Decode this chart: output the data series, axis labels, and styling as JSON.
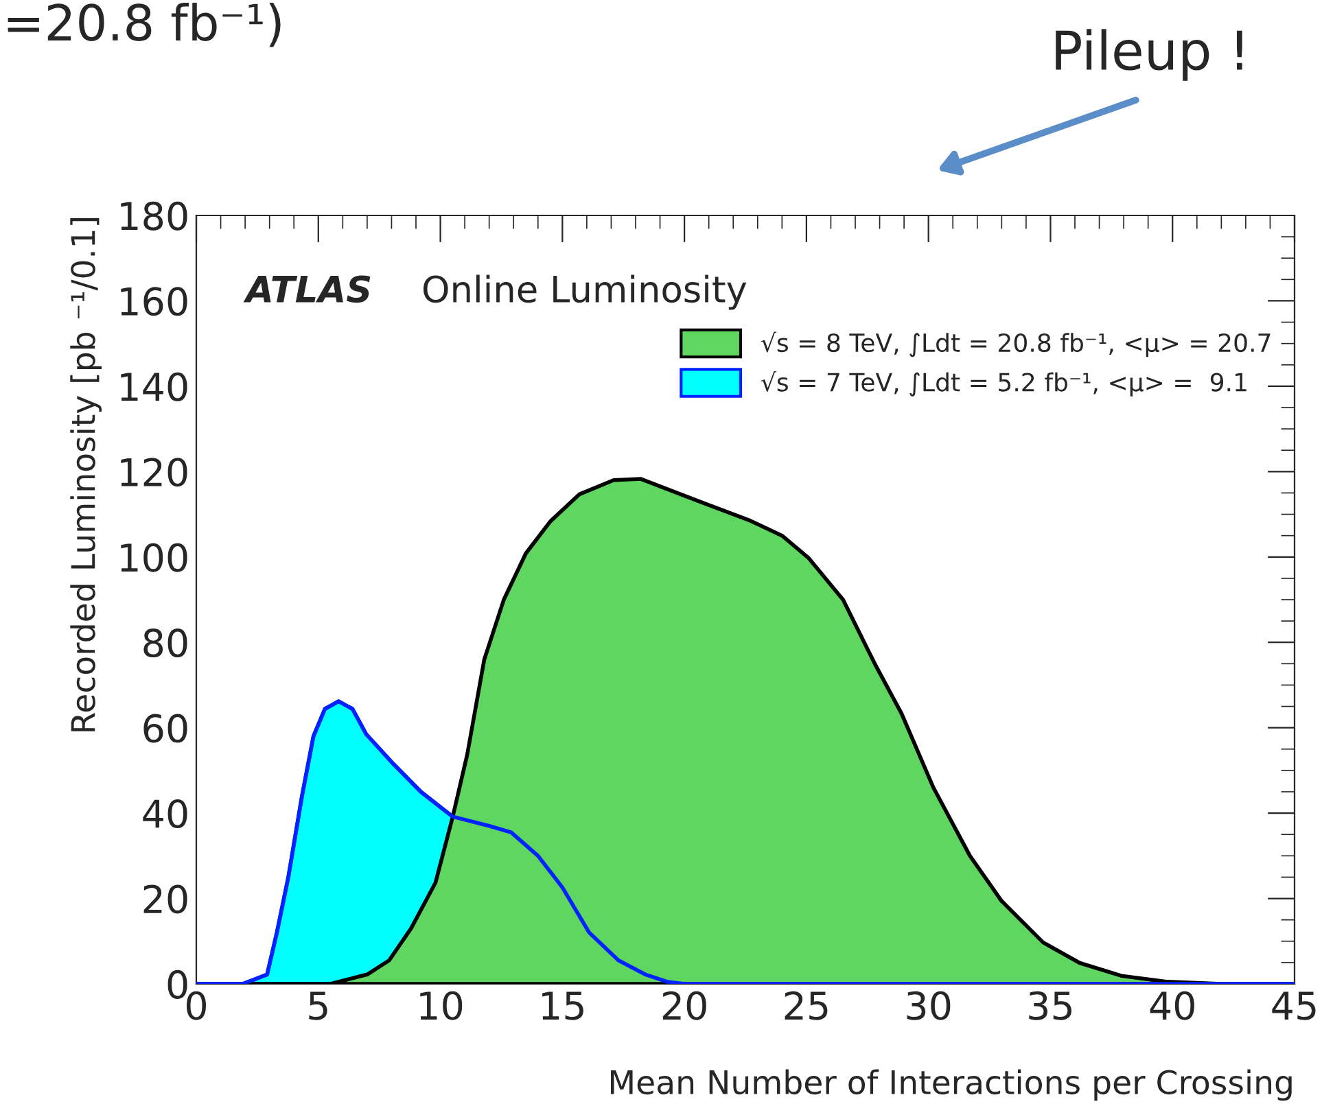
{
  "chart_data": {
    "type": "area",
    "xlabel": "Mean Number of Interactions per Crossing",
    "ylabel": "Recorded Luminosity [pb ⁻¹/0.1]",
    "annotations": [
      "ATLAS",
      "Online Luminosity",
      "Pileup !",
      "=20.8 fb⁻¹)"
    ],
    "xlim": [
      0,
      45
    ],
    "xticks": [
      0,
      5,
      10,
      15,
      20,
      25,
      30,
      35,
      40,
      45
    ],
    "ylim": [
      0,
      180
    ],
    "yticks": [
      0,
      20,
      40,
      60,
      80,
      100,
      120,
      140,
      160,
      180
    ],
    "legend": "top right",
    "grid": false,
    "series": [
      {
        "name": "√s = 8 TeV, ∫Ldt = 20.8 fb⁻¹, <μ> = 20.7",
        "color": "#5fd65f",
        "x": [
          0,
          5.5,
          7.0,
          7.9,
          8.8,
          9.8,
          10.5,
          11.1,
          11.8,
          12.6,
          13.5,
          14.5,
          15.7,
          17.1,
          18.2,
          20.8,
          22.7,
          24.0,
          25.1,
          26.5,
          27.8,
          28.9,
          30.2,
          31.7,
          33.0,
          34.7,
          36.2,
          37.9,
          39.8,
          42,
          45
        ],
        "values": [
          0,
          0,
          2.2,
          5.5,
          13,
          23.7,
          39,
          53.7,
          76,
          90,
          100.8,
          108.3,
          114.7,
          118,
          118.3,
          112.6,
          108.5,
          105,
          99.7,
          90,
          75,
          63.3,
          46,
          30,
          19.4,
          9.7,
          4.9,
          1.9,
          0.5,
          0,
          0
        ]
      },
      {
        "name": "√s = 7 TeV, ∫Ldt = 5.2 fb⁻¹, <μ> =  9.1",
        "color": "#00ffff",
        "x": [
          0,
          1.9,
          2.9,
          3.3,
          3.77,
          4.33,
          4.8,
          5.27,
          5.83,
          6.4,
          6.96,
          8.08,
          9.2,
          10.5,
          12.0,
          12.9,
          14.0,
          15.0,
          16.1,
          17.3,
          18.4,
          19.3,
          20,
          45
        ],
        "values": [
          0,
          0,
          2.2,
          12,
          25,
          44,
          58,
          64.4,
          66.2,
          64.4,
          58.5,
          51.5,
          45,
          39.2,
          37,
          35.5,
          30,
          22.6,
          12,
          5.5,
          2.2,
          0.5,
          0,
          0
        ]
      }
    ]
  }
}
